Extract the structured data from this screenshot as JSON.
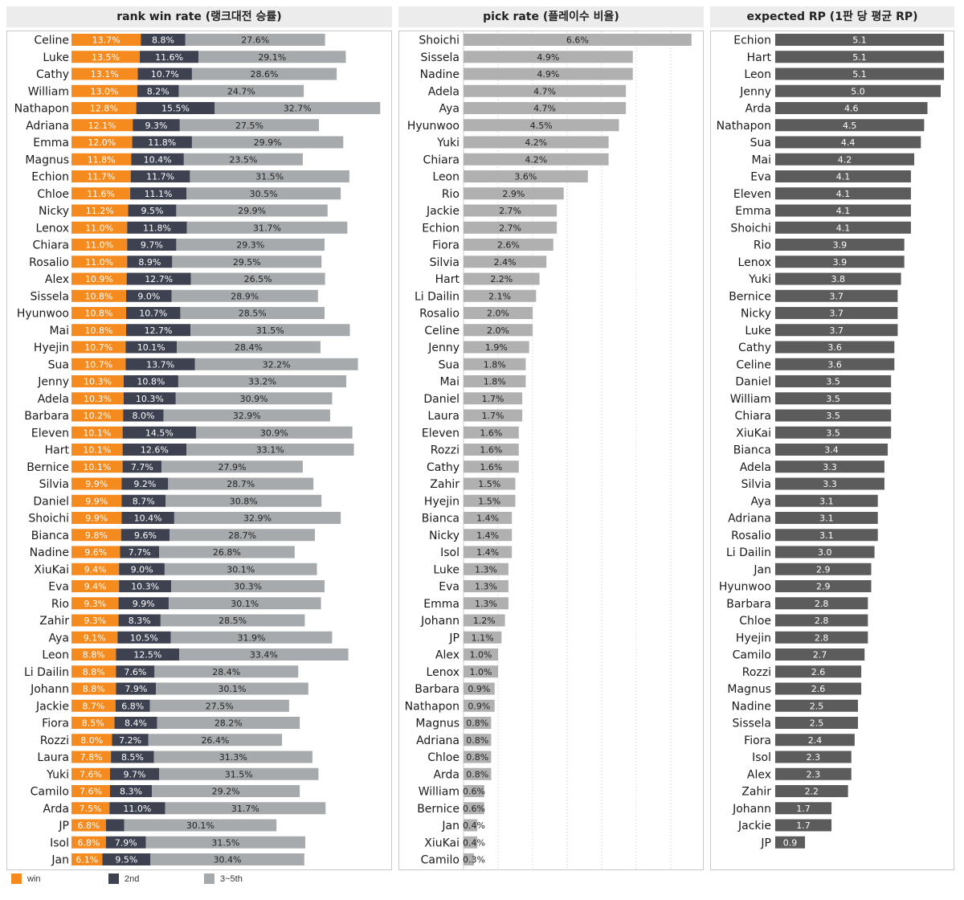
{
  "chart_data": [
    {
      "type": "bar",
      "stacked": true,
      "title": "rank win rate (랭크대전 승률)",
      "categories": [
        "Celine",
        "Luke",
        "Cathy",
        "William",
        "Nathapon",
        "Adriana",
        "Emma",
        "Magnus",
        "Echion",
        "Chloe",
        "Nicky",
        "Lenox",
        "Chiara",
        "Rosalio",
        "Alex",
        "Sissela",
        "Hyunwoo",
        "Mai",
        "Hyejin",
        "Sua",
        "Jenny",
        "Adela",
        "Barbara",
        "Eleven",
        "Hart",
        "Bernice",
        "Silvia",
        "Daniel",
        "Shoichi",
        "Bianca",
        "Nadine",
        "XiuKai",
        "Eva",
        "Rio",
        "Zahir",
        "Aya",
        "Leon",
        "Li Dailin",
        "Johann",
        "Jackie",
        "Fiora",
        "Rozzi",
        "Laura",
        "Yuki",
        "Camilo",
        "Arda",
        "JP",
        "Isol",
        "Jan"
      ],
      "series": [
        {
          "name": "win",
          "color": "#f58a1f",
          "labels": [
            "13.7%",
            "13.5%",
            "13.1%",
            "13.0%",
            "12.8%",
            "12.1%",
            "12.0%",
            "11.8%",
            "11.7%",
            "11.6%",
            "11.2%",
            "11.0%",
            "11.0%",
            "11.0%",
            "10.9%",
            "10.8%",
            "10.8%",
            "10.8%",
            "10.7%",
            "10.7%",
            "10.3%",
            "10.3%",
            "10.2%",
            "10.1%",
            "10.1%",
            "10.1%",
            "9.9%",
            "9.9%",
            "9.9%",
            "9.8%",
            "9.6%",
            "9.4%",
            "9.4%",
            "9.3%",
            "9.3%",
            "9.1%",
            "8.8%",
            "8.8%",
            "8.8%",
            "8.7%",
            "8.5%",
            "8.0%",
            "7.8%",
            "7.6%",
            "7.6%",
            "7.5%",
            "6.8%",
            "6.8%",
            "6.1%"
          ],
          "values": [
            13.7,
            13.5,
            13.1,
            13.0,
            12.8,
            12.1,
            12.0,
            11.8,
            11.7,
            11.6,
            11.2,
            11.0,
            11.0,
            11.0,
            10.9,
            10.8,
            10.8,
            10.8,
            10.7,
            10.7,
            10.3,
            10.3,
            10.2,
            10.1,
            10.1,
            10.1,
            9.9,
            9.9,
            9.9,
            9.8,
            9.6,
            9.4,
            9.4,
            9.3,
            9.3,
            9.1,
            8.8,
            8.8,
            8.8,
            8.7,
            8.5,
            8.0,
            7.8,
            7.6,
            7.6,
            7.5,
            6.8,
            6.8,
            6.1
          ]
        },
        {
          "name": "2nd",
          "color": "#3d4150",
          "labels": [
            "8.8%",
            "11.6%",
            "10.7%",
            "8.2%",
            "15.5%",
            "9.3%",
            "11.8%",
            "10.4%",
            "11.7%",
            "11.1%",
            "9.5%",
            "11.8%",
            "9.7%",
            "8.9%",
            "12.7%",
            "9.0%",
            "10.7%",
            "12.7%",
            "10.1%",
            "13.7%",
            "10.8%",
            "10.3%",
            "8.0%",
            "14.5%",
            "12.6%",
            "7.7%",
            "9.2%",
            "8.7%",
            "10.4%",
            "9.6%",
            "7.7%",
            "9.0%",
            "10.3%",
            "9.9%",
            "8.3%",
            "10.5%",
            "12.5%",
            "7.6%",
            "7.9%",
            "6.8%",
            "8.4%",
            "7.2%",
            "8.5%",
            "9.7%",
            "8.3%",
            "11.0%",
            "",
            "7.9%",
            "9.5%"
          ],
          "values": [
            8.8,
            11.6,
            10.7,
            8.2,
            15.5,
            9.3,
            11.8,
            10.4,
            11.7,
            11.1,
            9.5,
            11.8,
            9.7,
            8.9,
            12.7,
            9.0,
            10.7,
            12.7,
            10.1,
            13.7,
            10.8,
            10.3,
            8.0,
            14.5,
            12.6,
            7.7,
            9.2,
            8.7,
            10.4,
            9.6,
            7.7,
            9.0,
            10.3,
            9.9,
            8.3,
            10.5,
            12.5,
            7.6,
            7.9,
            6.8,
            8.4,
            7.2,
            8.5,
            9.7,
            8.3,
            11.0,
            3.6,
            7.9,
            9.5
          ]
        },
        {
          "name": "3~5th",
          "color": "#a7aaad",
          "labels": [
            "27.6%",
            "29.1%",
            "28.6%",
            "24.7%",
            "32.7%",
            "27.5%",
            "29.9%",
            "23.5%",
            "31.5%",
            "30.5%",
            "29.9%",
            "31.7%",
            "29.3%",
            "29.5%",
            "26.5%",
            "28.9%",
            "28.5%",
            "31.5%",
            "28.4%",
            "32.2%",
            "33.2%",
            "30.9%",
            "32.9%",
            "30.9%",
            "33.1%",
            "27.9%",
            "28.7%",
            "30.8%",
            "32.9%",
            "28.7%",
            "26.8%",
            "30.1%",
            "30.3%",
            "30.1%",
            "28.5%",
            "31.9%",
            "33.4%",
            "28.4%",
            "30.1%",
            "27.5%",
            "28.2%",
            "26.4%",
            "31.3%",
            "31.5%",
            "29.2%",
            "31.7%",
            "30.1%",
            "31.5%",
            "30.4%"
          ],
          "values": [
            27.6,
            29.1,
            28.6,
            24.7,
            32.7,
            27.5,
            29.9,
            23.5,
            31.5,
            30.5,
            29.9,
            31.7,
            29.3,
            29.5,
            26.5,
            28.9,
            28.5,
            31.5,
            28.4,
            32.2,
            33.2,
            30.9,
            32.9,
            30.9,
            33.1,
            27.9,
            28.7,
            30.8,
            32.9,
            28.7,
            26.8,
            30.1,
            30.3,
            30.1,
            28.5,
            31.9,
            33.4,
            28.4,
            30.1,
            27.5,
            28.2,
            26.4,
            31.3,
            31.5,
            29.2,
            31.7,
            30.1,
            31.5,
            30.4
          ]
        }
      ]
    },
    {
      "type": "bar",
      "title": "pick rate (플레이수 비율)",
      "color": "#b0b0b0",
      "grid": true,
      "categories": [
        "Shoichi",
        "Sissela",
        "Nadine",
        "Adela",
        "Aya",
        "Hyunwoo",
        "Yuki",
        "Chiara",
        "Leon",
        "Rio",
        "Jackie",
        "Echion",
        "Fiora",
        "Silvia",
        "Hart",
        "Li Dailin",
        "Rosalio",
        "Celine",
        "Jenny",
        "Sua",
        "Mai",
        "Daniel",
        "Laura",
        "Eleven",
        "Rozzi",
        "Cathy",
        "Zahir",
        "Hyejin",
        "Bianca",
        "Nicky",
        "Isol",
        "Luke",
        "Eva",
        "Emma",
        "Johann",
        "JP",
        "Alex",
        "Lenox",
        "Barbara",
        "Nathapon",
        "Magnus",
        "Adriana",
        "Chloe",
        "Arda",
        "William",
        "Bernice",
        "Jan",
        "XiuKai",
        "Camilo"
      ],
      "values": [
        6.6,
        4.9,
        4.9,
        4.7,
        4.7,
        4.5,
        4.2,
        4.2,
        3.6,
        2.9,
        2.7,
        2.7,
        2.6,
        2.4,
        2.2,
        2.1,
        2.0,
        2.0,
        1.9,
        1.8,
        1.8,
        1.7,
        1.7,
        1.6,
        1.6,
        1.6,
        1.5,
        1.5,
        1.4,
        1.4,
        1.4,
        1.3,
        1.3,
        1.3,
        1.2,
        1.1,
        1.0,
        1.0,
        0.9,
        0.9,
        0.8,
        0.8,
        0.8,
        0.8,
        0.6,
        0.6,
        0.4,
        0.4,
        0.3
      ],
      "labels": [
        "6.6%",
        "4.9%",
        "4.9%",
        "4.7%",
        "4.7%",
        "4.5%",
        "4.2%",
        "4.2%",
        "3.6%",
        "2.9%",
        "2.7%",
        "2.7%",
        "2.6%",
        "2.4%",
        "2.2%",
        "2.1%",
        "2.0%",
        "2.0%",
        "1.9%",
        "1.8%",
        "1.8%",
        "1.7%",
        "1.7%",
        "1.6%",
        "1.6%",
        "1.6%",
        "1.5%",
        "1.5%",
        "1.4%",
        "1.4%",
        "1.4%",
        "1.3%",
        "1.3%",
        "1.3%",
        "1.2%",
        "1.1%",
        "1.0%",
        "1.0%",
        "0.9%",
        "0.9%",
        "0.8%",
        "0.8%",
        "0.8%",
        "0.8%",
        "0.6%",
        "0.6%",
        "0.4%",
        "0.4%",
        "0.3%"
      ]
    },
    {
      "type": "bar",
      "title": "expected RP (1판 당 평균 RP)",
      "color": "#5c5c5c",
      "categories": [
        "Echion",
        "Hart",
        "Leon",
        "Jenny",
        "Arda",
        "Nathapon",
        "Sua",
        "Mai",
        "Eva",
        "Eleven",
        "Emma",
        "Shoichi",
        "Rio",
        "Lenox",
        "Yuki",
        "Bernice",
        "Nicky",
        "Luke",
        "Cathy",
        "Celine",
        "Daniel",
        "William",
        "Chiara",
        "XiuKai",
        "Bianca",
        "Adela",
        "Silvia",
        "Aya",
        "Adriana",
        "Rosalio",
        "Li Dailin",
        "Jan",
        "Hyunwoo",
        "Barbara",
        "Chloe",
        "Hyejin",
        "Camilo",
        "Rozzi",
        "Magnus",
        "Nadine",
        "Sissela",
        "Fiora",
        "Isol",
        "Alex",
        "Zahir",
        "Johann",
        "Jackie",
        "JP"
      ],
      "values": [
        5.1,
        5.1,
        5.1,
        5.0,
        4.6,
        4.5,
        4.4,
        4.2,
        4.1,
        4.1,
        4.1,
        4.1,
        3.9,
        3.9,
        3.8,
        3.7,
        3.7,
        3.7,
        3.6,
        3.6,
        3.5,
        3.5,
        3.5,
        3.5,
        3.4,
        3.3,
        3.3,
        3.1,
        3.1,
        3.1,
        3.0,
        2.9,
        2.9,
        2.8,
        2.8,
        2.8,
        2.7,
        2.6,
        2.6,
        2.5,
        2.5,
        2.4,
        2.3,
        2.3,
        2.2,
        1.7,
        1.7,
        0.9
      ],
      "labels": [
        "5.1",
        "5.1",
        "5.1",
        "5.0",
        "4.6",
        "4.5",
        "4.4",
        "4.2",
        "4.1",
        "4.1",
        "4.1",
        "4.1",
        "3.9",
        "3.9",
        "3.8",
        "3.7",
        "3.7",
        "3.7",
        "3.6",
        "3.6",
        "3.5",
        "3.5",
        "3.5",
        "3.5",
        "3.4",
        "3.3",
        "3.3",
        "3.1",
        "3.1",
        "3.1",
        "3.0",
        "2.9",
        "2.9",
        "2.8",
        "2.8",
        "2.8",
        "2.7",
        "2.6",
        "2.6",
        "2.5",
        "2.5",
        "2.4",
        "2.3",
        "2.3",
        "2.2",
        "1.7",
        "1.7",
        "0.9"
      ]
    }
  ],
  "legend": [
    {
      "label": "win",
      "color": "#f58a1f"
    },
    {
      "label": "2nd",
      "color": "#3d4150"
    },
    {
      "label": "3~5th",
      "color": "#a7aaad"
    }
  ]
}
